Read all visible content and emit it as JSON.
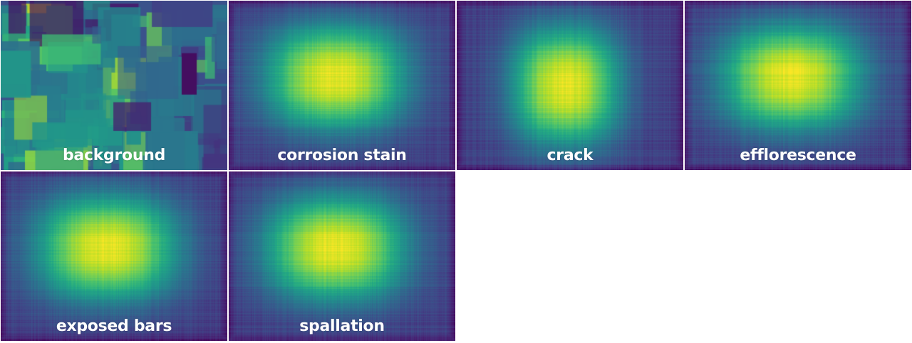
{
  "chart_data": {
    "type": "heatmap",
    "colormap": "viridis",
    "layout": "grid",
    "panels": [
      {
        "label": "background",
        "pattern": "blocks"
      },
      {
        "label": "corrosion stain",
        "pattern": "central"
      },
      {
        "label": "crack",
        "pattern": "central-narrow"
      },
      {
        "label": "efflorescence",
        "pattern": "central"
      },
      {
        "label": "exposed bars",
        "pattern": "central"
      },
      {
        "label": "spallation",
        "pattern": "central"
      }
    ]
  }
}
